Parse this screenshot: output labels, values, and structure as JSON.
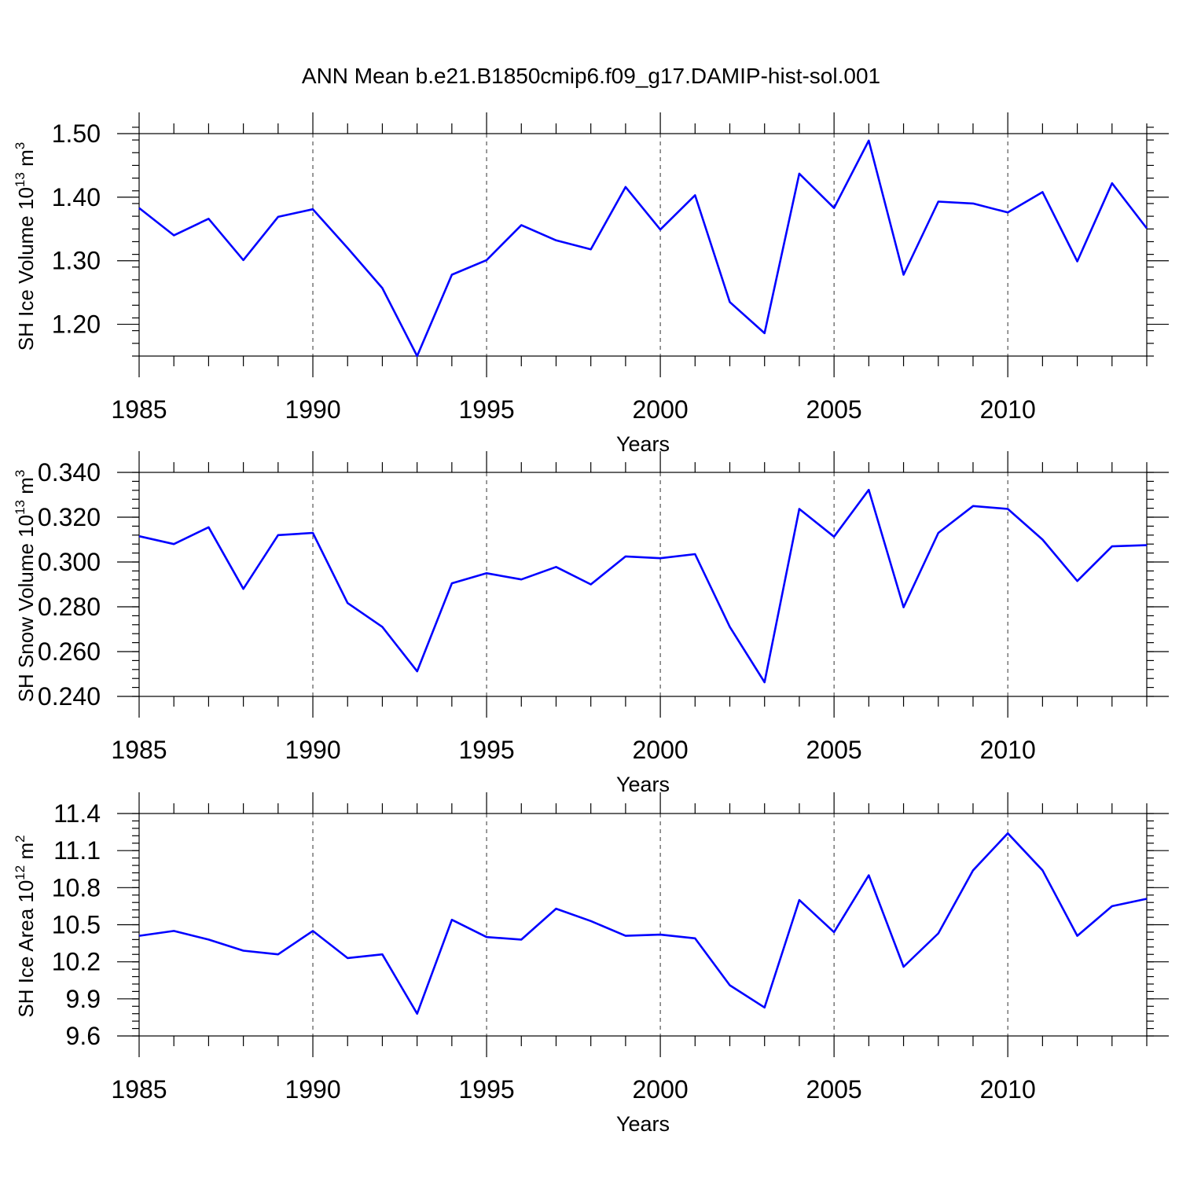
{
  "title": "ANN Mean b.e21.B1850cmip6.f09_g17.DAMIP-hist-sol.001",
  "line_color": "#0000ff",
  "chart_data": [
    {
      "type": "line",
      "ylabel": {
        "main": "SH Ice Volume 10",
        "exp": "13",
        "unit": " m",
        "unit_exp": "3"
      },
      "xlabel": "Years",
      "xlim": [
        1985,
        2014
      ],
      "ylim": [
        1.15,
        1.5
      ],
      "y_ticks": [
        1.2,
        1.3,
        1.4,
        1.5
      ],
      "y_tick_labels": [
        "1.20",
        "1.30",
        "1.40",
        "1.50"
      ],
      "y_minor_step": 0.02,
      "x_ticks": [
        1985,
        1990,
        1995,
        2000,
        2005,
        2010
      ],
      "x_tick_labels": [
        "1985",
        "1990",
        "1995",
        "2000",
        "2005",
        "2010"
      ],
      "grid": "vertical dashed at major x ticks",
      "x": [
        1985,
        1986,
        1987,
        1988,
        1989,
        1990,
        1991,
        1992,
        1993,
        1994,
        1995,
        1996,
        1997,
        1998,
        1999,
        2000,
        2001,
        2002,
        2003,
        2004,
        2005,
        2006,
        2007,
        2008,
        2009,
        2010,
        2011,
        2012,
        2013,
        2014
      ],
      "series": [
        {
          "values": [
            1.383,
            1.34,
            1.366,
            1.301,
            1.369,
            1.381,
            1.32,
            1.257,
            1.15,
            1.278,
            1.301,
            1.356,
            1.332,
            1.318,
            1.416,
            1.349,
            1.403,
            1.235,
            1.186,
            1.437,
            1.383,
            1.489,
            1.278,
            1.393,
            1.39,
            1.376,
            1.408,
            1.299,
            1.422,
            1.351
          ]
        }
      ]
    },
    {
      "type": "line",
      "ylabel": {
        "main": "SH Snow Volume 10",
        "exp": "13",
        "unit": " m",
        "unit_exp": "3"
      },
      "xlabel": "Years",
      "xlim": [
        1985,
        2014
      ],
      "ylim": [
        0.24,
        0.34
      ],
      "y_ticks": [
        0.24,
        0.26,
        0.28,
        0.3,
        0.32,
        0.34
      ],
      "y_tick_labels": [
        "0.240",
        "0.260",
        "0.280",
        "0.300",
        "0.320",
        "0.340"
      ],
      "y_minor_step": 0.004,
      "x_ticks": [
        1985,
        1990,
        1995,
        2000,
        2005,
        2010
      ],
      "x_tick_labels": [
        "1985",
        "1990",
        "1995",
        "2000",
        "2005",
        "2010"
      ],
      "grid": "vertical dashed at major x ticks",
      "x": [
        1985,
        1986,
        1987,
        1988,
        1989,
        1990,
        1991,
        1992,
        1993,
        1994,
        1995,
        1996,
        1997,
        1998,
        1999,
        2000,
        2001,
        2002,
        2003,
        2004,
        2005,
        2006,
        2007,
        2008,
        2009,
        2010,
        2011,
        2012,
        2013,
        2014
      ],
      "series": [
        {
          "values": [
            0.3115,
            0.308,
            0.3155,
            0.288,
            0.312,
            0.313,
            0.2817,
            0.271,
            0.2512,
            0.2905,
            0.295,
            0.2922,
            0.2978,
            0.29,
            0.3025,
            0.3017,
            0.3035,
            0.271,
            0.2463,
            0.3237,
            0.3113,
            0.3322,
            0.2798,
            0.313,
            0.325,
            0.3237,
            0.31,
            0.2915,
            0.307,
            0.3075
          ]
        }
      ]
    },
    {
      "type": "line",
      "ylabel": {
        "main": "SH Ice Area 10",
        "exp": "12",
        "unit": " m",
        "unit_exp": "2"
      },
      "xlabel": "Years",
      "xlim": [
        1985,
        2014
      ],
      "ylim": [
        9.6,
        11.4
      ],
      "y_ticks": [
        9.6,
        9.9,
        10.2,
        10.5,
        10.8,
        11.1,
        11.4
      ],
      "y_tick_labels": [
        "9.6",
        "9.9",
        "10.2",
        "10.5",
        "10.8",
        "11.1",
        "11.4"
      ],
      "y_minor_step": 0.06,
      "x_ticks": [
        1985,
        1990,
        1995,
        2000,
        2005,
        2010
      ],
      "x_tick_labels": [
        "1985",
        "1990",
        "1995",
        "2000",
        "2005",
        "2010"
      ],
      "grid": "vertical dashed at major x ticks",
      "x": [
        1985,
        1986,
        1987,
        1988,
        1989,
        1990,
        1991,
        1992,
        1993,
        1994,
        1995,
        1996,
        1997,
        1998,
        1999,
        2000,
        2001,
        2002,
        2003,
        2004,
        2005,
        2006,
        2007,
        2008,
        2009,
        2010,
        2011,
        2012,
        2013,
        2014
      ],
      "series": [
        {
          "values": [
            10.41,
            10.45,
            10.38,
            10.29,
            10.26,
            10.45,
            10.23,
            10.26,
            9.78,
            10.54,
            10.4,
            10.38,
            10.63,
            10.53,
            10.41,
            10.42,
            10.39,
            10.01,
            9.83,
            10.7,
            10.44,
            10.9,
            10.16,
            10.43,
            10.94,
            11.24,
            10.94,
            10.41,
            10.65,
            10.71
          ]
        }
      ]
    }
  ]
}
